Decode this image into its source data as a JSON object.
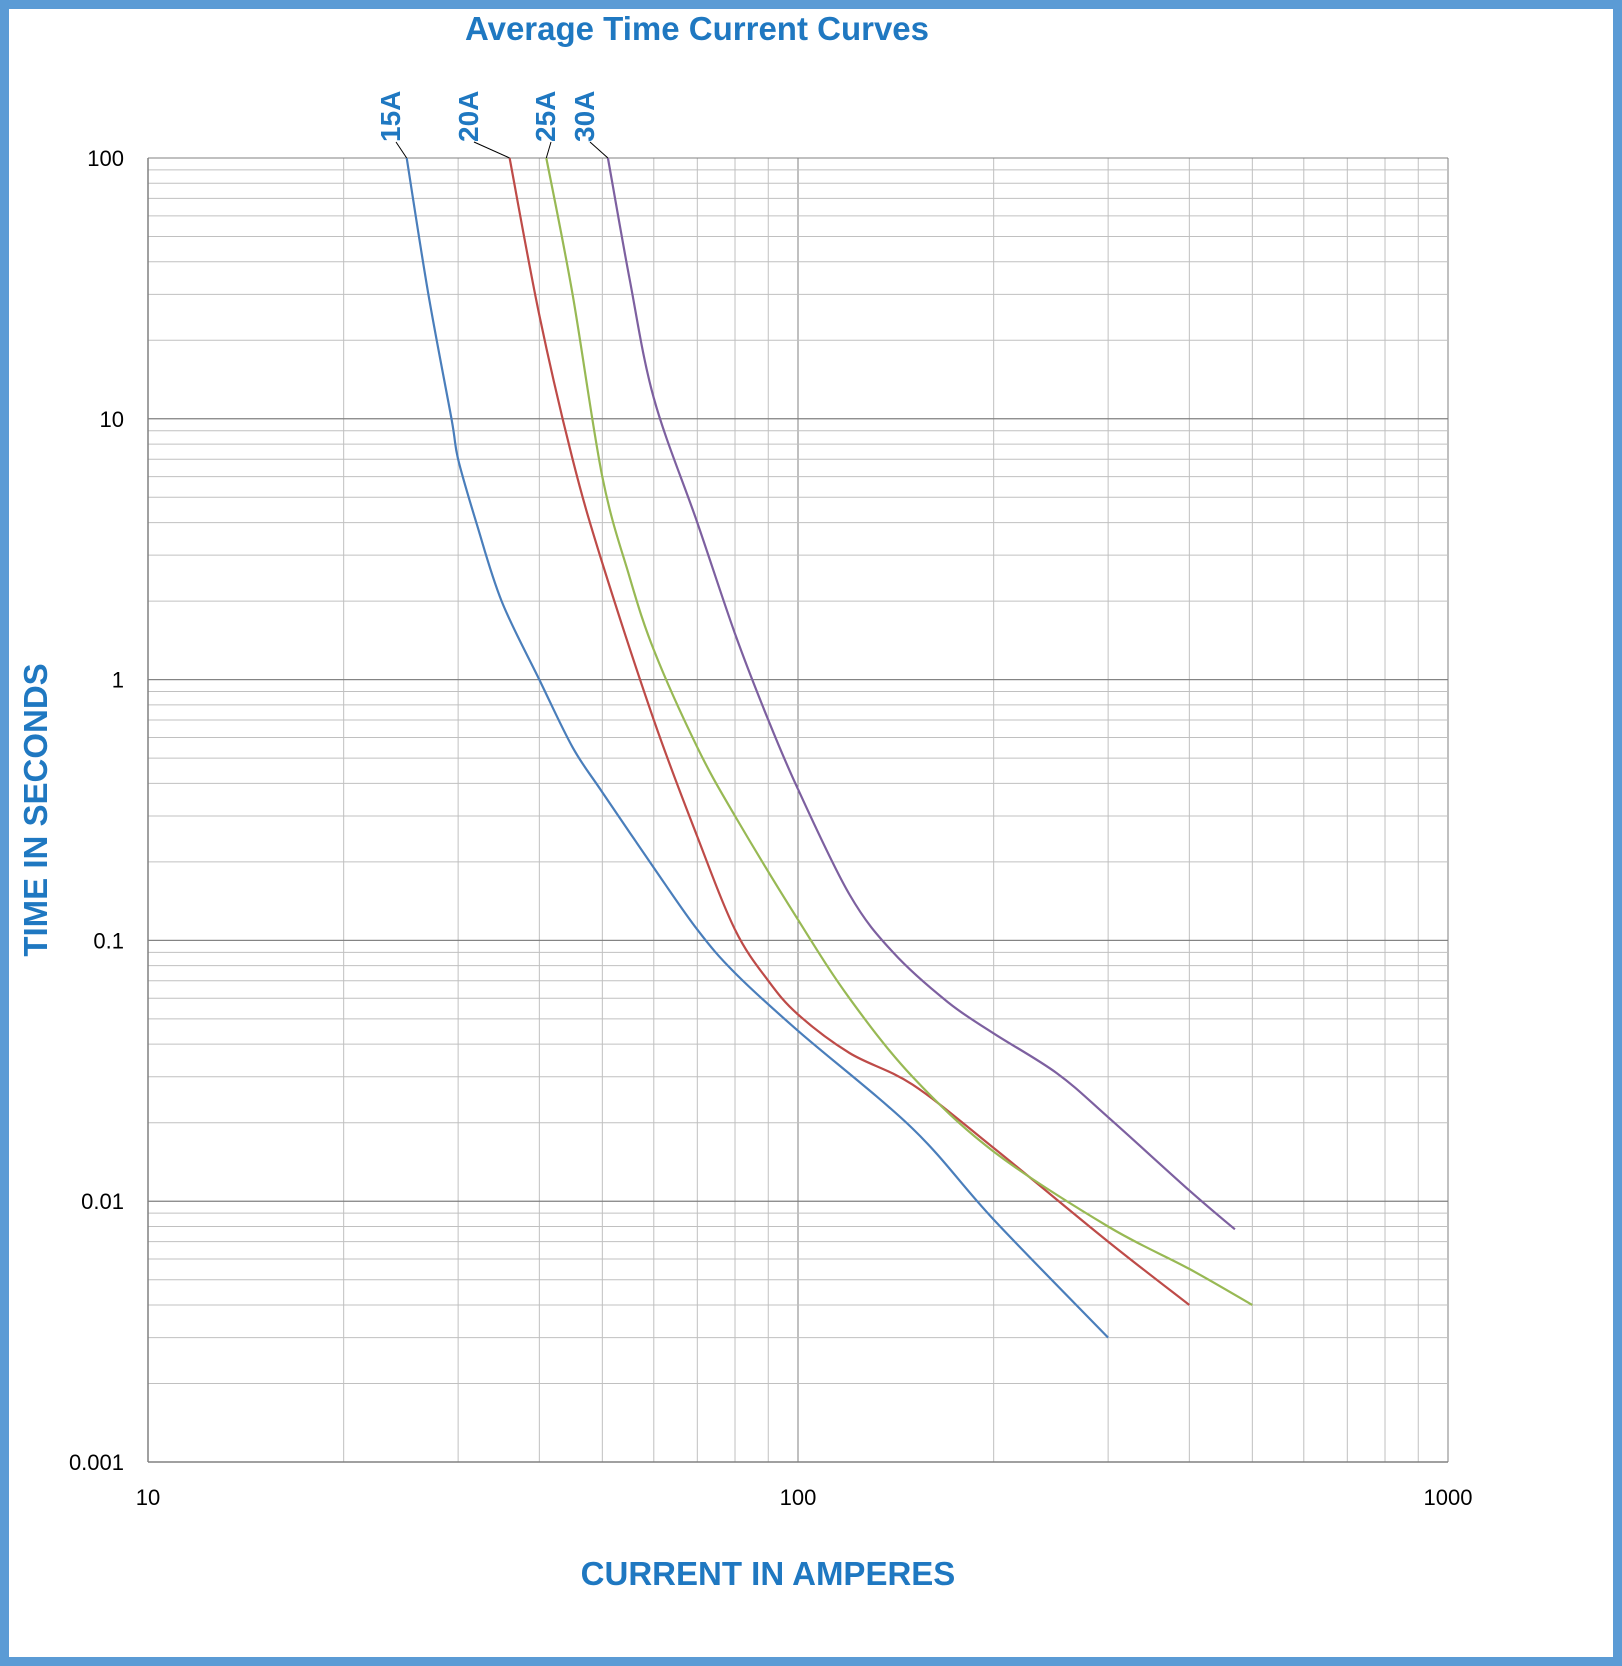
{
  "chart_data": {
    "type": "line",
    "title": "Average Time Current Curves",
    "xlabel": "CURRENT IN AMPERES",
    "ylabel": "TIME IN SECONDS",
    "x_scale": "log",
    "y_scale": "log",
    "xlim": [
      10,
      1000
    ],
    "ylim": [
      0.001,
      100
    ],
    "x_ticks": [
      "10",
      "100",
      "1000"
    ],
    "y_ticks": [
      "100",
      "10",
      "1",
      "0.1",
      "0.01",
      "0.001"
    ],
    "grid": true,
    "series": [
      {
        "name": "15A",
        "color": "#4a7ebb",
        "points": [
          [
            25,
            100
          ],
          [
            27,
            30
          ],
          [
            29.3,
            10
          ],
          [
            30,
            7
          ],
          [
            32,
            4
          ],
          [
            35,
            2
          ],
          [
            40,
            1
          ],
          [
            45,
            0.55
          ],
          [
            50,
            0.37
          ],
          [
            60,
            0.19
          ],
          [
            70,
            0.11
          ],
          [
            80,
            0.075
          ],
          [
            100,
            0.045
          ],
          [
            150,
            0.019
          ],
          [
            200,
            0.0085
          ],
          [
            300,
            0.003
          ]
        ]
      },
      {
        "name": "20A",
        "color": "#be4b48",
        "points": [
          [
            36,
            100
          ],
          [
            40,
            25
          ],
          [
            45,
            7
          ],
          [
            50,
            2.8
          ],
          [
            60,
            0.7
          ],
          [
            70,
            0.25
          ],
          [
            80,
            0.11
          ],
          [
            90,
            0.07
          ],
          [
            100,
            0.052
          ],
          [
            120,
            0.037
          ],
          [
            150,
            0.028
          ],
          [
            200,
            0.016
          ],
          [
            300,
            0.007
          ],
          [
            400,
            0.004
          ]
        ]
      },
      {
        "name": "25A",
        "color": "#98b954",
        "points": [
          [
            41,
            100
          ],
          [
            45,
            30
          ],
          [
            50,
            6
          ],
          [
            55,
            2.5
          ],
          [
            60,
            1.3
          ],
          [
            70,
            0.55
          ],
          [
            80,
            0.3
          ],
          [
            100,
            0.12
          ],
          [
            120,
            0.06
          ],
          [
            150,
            0.03
          ],
          [
            200,
            0.0155
          ],
          [
            300,
            0.008
          ],
          [
            400,
            0.0055
          ],
          [
            500,
            0.004
          ]
        ]
      },
      {
        "name": "30A",
        "color": "#7d60a0",
        "points": [
          [
            51,
            100
          ],
          [
            55,
            35
          ],
          [
            60,
            12
          ],
          [
            70,
            4
          ],
          [
            80,
            1.5
          ],
          [
            90,
            0.7
          ],
          [
            100,
            0.38
          ],
          [
            120,
            0.15
          ],
          [
            140,
            0.09
          ],
          [
            170,
            0.058
          ],
          [
            200,
            0.044
          ],
          [
            250,
            0.031
          ],
          [
            300,
            0.021
          ],
          [
            400,
            0.011
          ],
          [
            470,
            0.0078
          ]
        ]
      }
    ]
  },
  "colors": {
    "accent": "#1f78c1",
    "frame": "#5b9bd5",
    "grid": "#c0c0c0",
    "grid_major": "#808080"
  }
}
